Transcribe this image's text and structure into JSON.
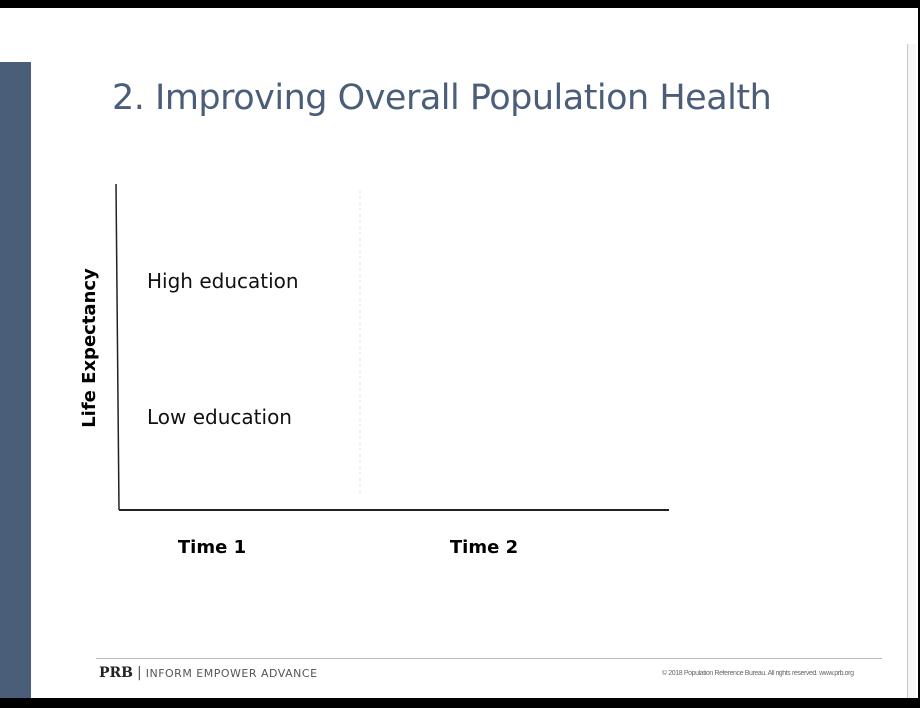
{
  "slide": {
    "title": "2. Improving Overall Population Health"
  },
  "chart_data": {
    "type": "line",
    "title": "",
    "xlabel": "",
    "ylabel": "Life Expectancy",
    "categories": [
      "Time 1",
      "Time 2"
    ],
    "series": [],
    "annotations": [
      "High education",
      "Low education"
    ],
    "grid": false,
    "divider_between_categories": true
  },
  "footer": {
    "logo_text": "PRB",
    "separator": "|",
    "tagline": "INFORM  EMPOWER  ADVANCE",
    "copyright": "© 2018 Population Reference Bureau. All rights reserved. www.prb.org"
  },
  "colors": {
    "accent": "#4a5e7a",
    "axis": "#222222"
  }
}
